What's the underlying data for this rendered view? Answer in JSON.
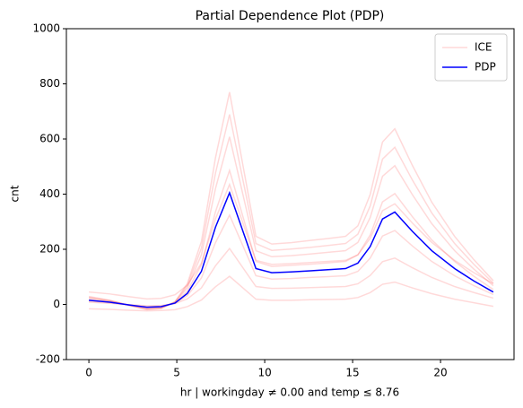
{
  "chart_data": {
    "type": "line",
    "title": "Partial Dependence Plot (PDP)",
    "xlabel": "hr | workingday ≠ 0.00 and temp ≤ 8.76",
    "ylabel": "cnt",
    "x": [
      0,
      1.2,
      2.3,
      3.3,
      4.1,
      4.9,
      5.6,
      6.4,
      7.2,
      8.0,
      9.5,
      10.4,
      11.5,
      12.6,
      13.6,
      14.6,
      15.3,
      16.0,
      16.7,
      17.4,
      18.4,
      19.5,
      20.8,
      21.9,
      23.0
    ],
    "series": [
      {
        "name": "ICE",
        "color": "#ff0000",
        "values": [
          29,
          15,
          -4,
          -19,
          -15,
          10,
          76,
          228,
          532,
          770,
          247,
          219,
          224,
          232,
          239,
          247,
          285,
          399,
          589,
          637,
          504,
          371,
          247,
          162,
          86
        ]
      },
      {
        "name": "ICE",
        "color": "#ff0000",
        "values": [
          26,
          14,
          -3,
          -17,
          -14,
          9,
          68,
          204,
          476,
          689,
          221,
          196,
          201,
          207,
          214,
          221,
          255,
          357,
          527,
          570,
          451,
          332,
          221,
          145,
          77
        ]
      },
      {
        "name": "ICE",
        "color": "#ff0000",
        "values": [
          23,
          12,
          -3,
          -15,
          -12,
          8,
          60,
          180,
          420,
          608,
          195,
          173,
          177,
          183,
          189,
          195,
          225,
          315,
          465,
          503,
          398,
          293,
          195,
          128,
          68
        ]
      },
      {
        "name": "ICE",
        "color": "#ff0000",
        "values": [
          18,
          10,
          -2,
          -12,
          -10,
          6,
          48,
          144,
          336,
          486,
          156,
          138,
          142,
          146,
          151,
          156,
          180,
          252,
          372,
          402,
          318,
          234,
          156,
          102,
          54
        ]
      },
      {
        "name": "ICE",
        "color": "#ff0000",
        "values": [
          45,
          38,
          28,
          20,
          22,
          35,
          70,
          150,
          310,
          435,
          160,
          145,
          148,
          152,
          156,
          160,
          180,
          240,
          340,
          365,
          295,
          225,
          160,
          115,
          75
        ]
      },
      {
        "name": "ICE",
        "color": "#ff0000",
        "values": [
          12,
          6,
          -2,
          -8,
          -6,
          4,
          32,
          96,
          224,
          324,
          104,
          92,
          94,
          98,
          101,
          104,
          120,
          168,
          248,
          268,
          212,
          156,
          104,
          68,
          36
        ]
      },
      {
        "name": "ICE",
        "color": "#ff0000",
        "values": [
          8,
          4,
          -1,
          -5,
          -4,
          3,
          20,
          60,
          140,
          203,
          65,
          58,
          59,
          61,
          63,
          65,
          75,
          105,
          155,
          168,
          133,
          98,
          65,
          43,
          23
        ]
      },
      {
        "name": "ICE",
        "color": "#ff0000",
        "values": [
          -16,
          -18,
          -21,
          -23,
          -22,
          -19,
          -8,
          16,
          64,
          102,
          19,
          15,
          15,
          17,
          18,
          19,
          25,
          43,
          73,
          81,
          60,
          39,
          19,
          6,
          -7
        ]
      },
      {
        "name": "PDP",
        "color": "#0000ff",
        "values": [
          15,
          8,
          -2,
          -10,
          -8,
          5,
          40,
          120,
          280,
          405,
          130,
          115,
          118,
          122,
          126,
          130,
          150,
          210,
          310,
          335,
          265,
          195,
          130,
          85,
          45
        ]
      }
    ],
    "xlim": [
      -1.28,
      24.18
    ],
    "xticks": [
      0,
      5,
      10,
      15,
      20
    ],
    "ylim": [
      -200,
      1000
    ],
    "yticks": [
      -200,
      0,
      200,
      400,
      600,
      800,
      1000
    ],
    "legend": "upper right"
  }
}
